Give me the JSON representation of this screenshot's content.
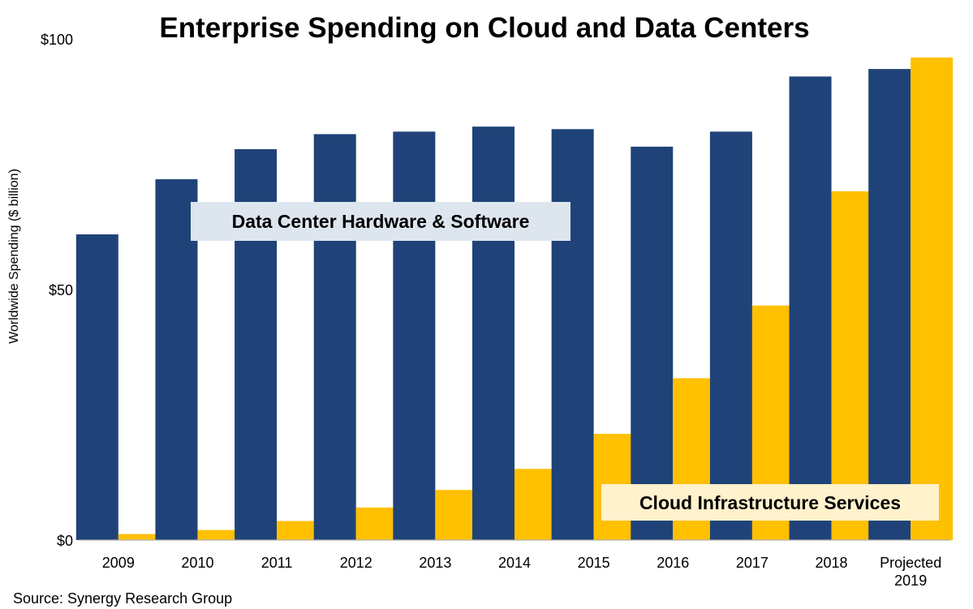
{
  "chart_data": {
    "type": "bar",
    "title": "Enterprise Spending on Cloud and Data Centers",
    "ylabel": "Worldwide Spending ($ billion)",
    "xlabel": "",
    "ylim": [
      0,
      100
    ],
    "yticks": [
      {
        "value": 0,
        "label": "$0"
      },
      {
        "value": 50,
        "label": "$50"
      },
      {
        "value": 100,
        "label": "$100"
      }
    ],
    "categories": [
      [
        "2009"
      ],
      [
        "2010"
      ],
      [
        "2011"
      ],
      [
        "2012"
      ],
      [
        "2013"
      ],
      [
        "2014"
      ],
      [
        "2015"
      ],
      [
        "2016"
      ],
      [
        "2017"
      ],
      [
        "2018"
      ],
      [
        "Projected",
        "2019"
      ]
    ],
    "series": [
      {
        "name": "Data Center Hardware & Software",
        "color": "#1f4378",
        "values": [
          61,
          72,
          78,
          81,
          81.5,
          82.5,
          82,
          78.5,
          81.5,
          92.5,
          94
        ]
      },
      {
        "name": "Cloud Infrastructure Services",
        "color": "#ffc000",
        "values": [
          1.2,
          2,
          3.8,
          6.5,
          10,
          14.2,
          21.2,
          32.3,
          46.8,
          69.6,
          96.3
        ]
      }
    ],
    "annotations": [
      {
        "text": "Data Center Hardware & Software",
        "series": 0,
        "box_color": "#dde5ef"
      },
      {
        "text": "Cloud Infrastructure Services",
        "series": 1,
        "box_color": "#fff2cc"
      }
    ],
    "source": "Source: Synergy Research Group",
    "grid": false
  }
}
